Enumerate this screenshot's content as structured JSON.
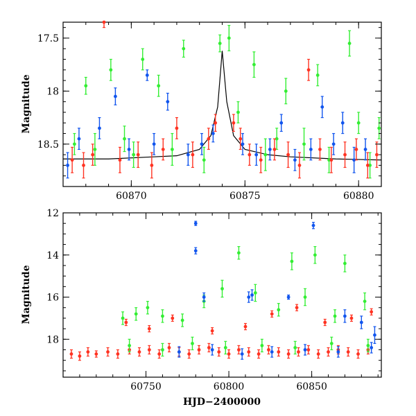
{
  "chart_data": [
    {
      "type": "scatter",
      "title": "",
      "xlabel": "",
      "ylabel": "Magnitude",
      "xlim": [
        60867,
        60881
      ],
      "ylim": [
        18.9,
        17.35
      ],
      "y_inverted": true,
      "xticks": [
        60870,
        60875,
        60880
      ],
      "yticks": [
        17.5,
        18,
        18.5
      ],
      "colors": {
        "green": "#33ee33",
        "blue": "#1155ee",
        "red": "#ff3322",
        "model": "#000000"
      },
      "model_curve": {
        "name": "",
        "x": [
          60867,
          60869,
          60871,
          60872,
          60873,
          60873.5,
          60873.8,
          60874.0,
          60874.2,
          60874.5,
          60875,
          60876,
          60877,
          60879,
          60881
        ],
        "y": [
          18.64,
          18.64,
          18.62,
          18.61,
          18.55,
          18.42,
          18.15,
          17.62,
          18.1,
          18.42,
          18.55,
          18.6,
          18.62,
          18.64,
          18.65
        ]
      },
      "series": [
        {
          "name": "",
          "color": "green",
          "x": [
            60867.5,
            60868.0,
            60868.4,
            60869.1,
            60869.7,
            60870.1,
            60870.5,
            60871.2,
            60871.8,
            60872.3,
            60873.2,
            60873.9,
            60874.3,
            60874.7,
            60875.4,
            60875.9,
            60876.4,
            60876.8,
            60877.6,
            60878.2,
            60878.7,
            60879.6,
            60880.0,
            60880.5,
            60880.9
          ],
          "y": [
            18.5,
            17.95,
            18.55,
            17.8,
            18.45,
            18.6,
            17.7,
            17.95,
            18.55,
            17.6,
            18.65,
            17.55,
            17.5,
            18.2,
            17.75,
            18.6,
            18.45,
            18.0,
            18.5,
            17.85,
            18.65,
            17.55,
            18.3,
            18.7,
            18.35
          ],
          "err": [
            0.1,
            0.08,
            0.15,
            0.1,
            0.12,
            0.12,
            0.1,
            0.1,
            0.15,
            0.08,
            0.12,
            0.08,
            0.12,
            0.1,
            0.12,
            0.15,
            0.1,
            0.12,
            0.15,
            0.1,
            0.12,
            0.12,
            0.1,
            0.12,
            0.1
          ]
        },
        {
          "name": "",
          "color": "blue",
          "x": [
            60867.2,
            60867.7,
            60868.6,
            60869.3,
            60869.9,
            60870.7,
            60871.0,
            60871.6,
            60872.5,
            60873.1,
            60873.6,
            60874.9,
            60875.5,
            60876.1,
            60876.6,
            60877.2,
            60877.9,
            60878.4,
            60878.9,
            60879.3,
            60879.8,
            60880.3
          ],
          "y": [
            18.7,
            18.45,
            18.35,
            18.05,
            18.55,
            17.85,
            18.5,
            18.1,
            18.6,
            18.5,
            18.4,
            18.5,
            18.6,
            18.55,
            18.3,
            18.65,
            18.55,
            18.15,
            18.5,
            18.3,
            18.65,
            18.55
          ],
          "err": [
            0.12,
            0.1,
            0.1,
            0.08,
            0.1,
            0.05,
            0.1,
            0.08,
            0.1,
            0.1,
            0.08,
            0.1,
            0.1,
            0.1,
            0.08,
            0.1,
            0.1,
            0.1,
            0.1,
            0.1,
            0.12,
            0.1
          ]
        },
        {
          "name": "",
          "color": "red",
          "x": [
            60867.4,
            60867.9,
            60868.3,
            60868.8,
            60869.5,
            60870.3,
            60870.9,
            60871.4,
            60872.0,
            60872.7,
            60873.4,
            60873.7,
            60874.5,
            60874.8,
            60875.2,
            60875.7,
            60876.3,
            60876.9,
            60877.4,
            60877.8,
            60878.3,
            60878.8,
            60879.4,
            60879.9,
            60880.4,
            60880.8
          ],
          "y": [
            18.65,
            18.7,
            18.6,
            17.35,
            18.65,
            18.6,
            18.7,
            18.55,
            18.35,
            18.6,
            18.45,
            18.3,
            18.3,
            18.45,
            18.6,
            18.65,
            18.55,
            18.6,
            18.7,
            17.8,
            18.55,
            18.65,
            18.6,
            18.55,
            18.7,
            18.6
          ],
          "err": [
            0.12,
            0.12,
            0.1,
            0.05,
            0.12,
            0.12,
            0.12,
            0.1,
            0.1,
            0.12,
            0.1,
            0.08,
            0.08,
            0.1,
            0.1,
            0.12,
            0.1,
            0.12,
            0.12,
            0.1,
            0.1,
            0.12,
            0.12,
            0.1,
            0.12,
            0.12
          ]
        }
      ]
    },
    {
      "type": "scatter",
      "title": "",
      "xlabel": "HJD−2400000",
      "ylabel": "Magnitude",
      "xlim": [
        60700,
        60892
      ],
      "ylim": [
        19.8,
        12
      ],
      "y_inverted": true,
      "xticks": [
        60750,
        60800,
        60850
      ],
      "yticks": [
        12,
        14,
        16,
        18
      ],
      "series": [
        {
          "name": "",
          "color": "red",
          "x": [
            60705,
            60710,
            60715,
            60720,
            60727,
            60733,
            60740,
            60746,
            60752,
            60758,
            60764,
            60770,
            60776,
            60782,
            60788,
            60794,
            60800,
            60806,
            60812,
            60818,
            60824,
            60830,
            60836,
            60842,
            60848,
            60854,
            60860,
            60866,
            60872,
            60878,
            60884
          ],
          "y": [
            18.7,
            18.8,
            18.6,
            18.7,
            18.6,
            18.7,
            18.5,
            18.6,
            18.5,
            18.7,
            18.4,
            18.6,
            18.7,
            18.5,
            18.4,
            18.6,
            18.7,
            18.5,
            18.6,
            18.7,
            18.5,
            18.6,
            18.7,
            18.6,
            18.5,
            18.7,
            18.6,
            18.5,
            18.6,
            18.7,
            18.5
          ],
          "err": [
            0.2,
            0.2,
            0.2,
            0.15,
            0.2,
            0.2,
            0.2,
            0.2,
            0.2,
            0.2,
            0.2,
            0.2,
            0.2,
            0.2,
            0.2,
            0.2,
            0.2,
            0.2,
            0.2,
            0.2,
            0.2,
            0.2,
            0.2,
            0.2,
            0.2,
            0.2,
            0.2,
            0.2,
            0.2,
            0.2,
            0.2
          ]
        },
        {
          "name": "",
          "color": "red",
          "x": [
            60738,
            60752,
            60766,
            60790,
            60810,
            60826,
            60841,
            60858,
            60874,
            60886
          ],
          "y": [
            17.2,
            17.5,
            17.0,
            17.6,
            17.4,
            16.8,
            16.5,
            17.2,
            17.0,
            16.7
          ],
          "err": [
            0.15,
            0.15,
            0.15,
            0.15,
            0.15,
            0.15,
            0.15,
            0.15,
            0.15,
            0.15
          ]
        },
        {
          "name": "",
          "color": "green",
          "x": [
            60736,
            60744,
            60751,
            60760,
            60772,
            60785,
            60796,
            60806,
            60816,
            60830,
            60838,
            60846,
            60852,
            60864,
            60870,
            60882
          ],
          "y": [
            17.0,
            16.8,
            16.5,
            16.9,
            17.1,
            16.2,
            15.6,
            13.9,
            15.8,
            16.6,
            14.3,
            16.0,
            14.0,
            16.9,
            14.4,
            16.2
          ],
          "err": [
            0.3,
            0.3,
            0.3,
            0.3,
            0.3,
            0.3,
            0.4,
            0.3,
            0.4,
            0.3,
            0.4,
            0.4,
            0.4,
            0.3,
            0.4,
            0.4
          ]
        },
        {
          "name": "",
          "color": "green",
          "x": [
            60740,
            60760,
            60778,
            60798,
            60820,
            60840,
            60862,
            60884
          ],
          "y": [
            18.3,
            18.5,
            18.2,
            18.4,
            18.3,
            18.4,
            18.2,
            18.3
          ],
          "err": [
            0.3,
            0.3,
            0.3,
            0.3,
            0.3,
            0.3,
            0.3,
            0.3
          ]
        },
        {
          "name": "",
          "color": "blue",
          "x": [
            60780,
            60780,
            60785,
            60812,
            60814,
            60836,
            60851,
            60870,
            60880,
            60888
          ],
          "y": [
            12.5,
            13.8,
            16.0,
            16.0,
            15.9,
            16.0,
            12.6,
            16.9,
            17.2,
            17.8
          ],
          "err": [
            0.1,
            0.15,
            0.2,
            0.25,
            0.25,
            0.1,
            0.15,
            0.3,
            0.3,
            0.4
          ]
        },
        {
          "name": "",
          "color": "blue",
          "x": [
            60770,
            60790,
            60808,
            60826,
            60846,
            60866,
            60886
          ],
          "y": [
            18.6,
            18.5,
            18.7,
            18.6,
            18.5,
            18.6,
            18.4
          ],
          "err": [
            0.25,
            0.25,
            0.25,
            0.25,
            0.25,
            0.25,
            0.25
          ]
        }
      ]
    }
  ]
}
